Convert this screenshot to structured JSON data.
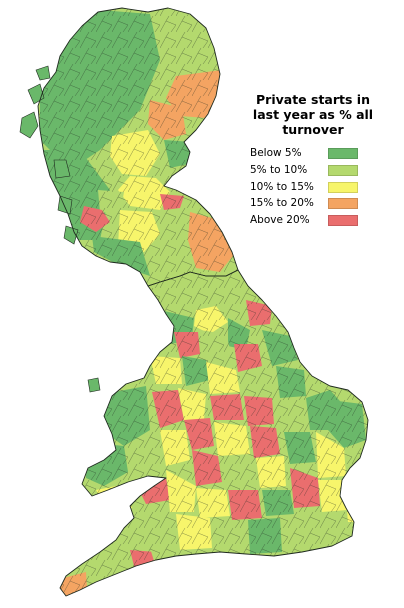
{
  "legend": {
    "title_lines": [
      "Private starts in",
      "last year as % all",
      "turnover"
    ],
    "items": [
      {
        "label": "Below 5%",
        "color": "#6ab86a"
      },
      {
        "label": "5% to 10%",
        "color": "#b4d96e"
      },
      {
        "label": "10% to 15%",
        "color": "#f7f56b"
      },
      {
        "label": "15% to 20%",
        "color": "#f4a462"
      },
      {
        "label": "Above 20%",
        "color": "#ea6e6e"
      }
    ]
  },
  "colors": {
    "boundary": "#1f2a1f",
    "background": "#ffffff"
  }
}
